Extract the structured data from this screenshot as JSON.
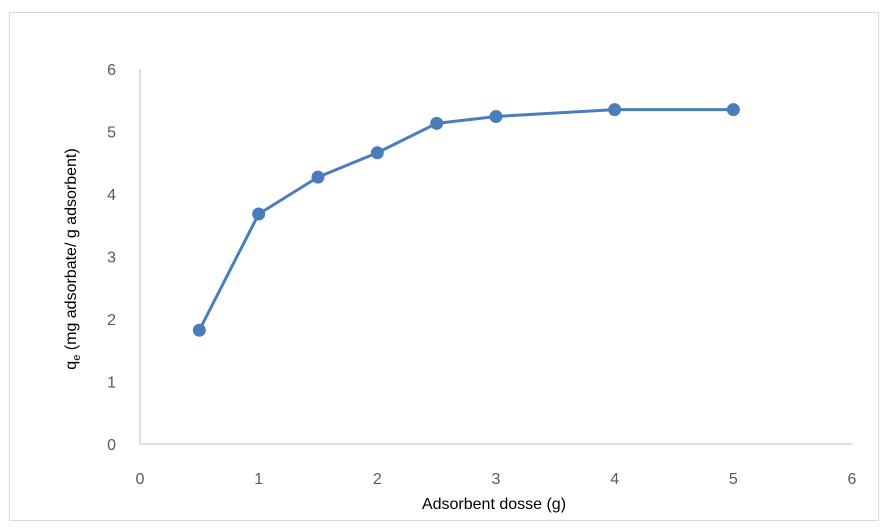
{
  "chart_data": {
    "type": "line",
    "title": "",
    "xlabel": "Adsorbent dosse (g)",
    "ylabel": {
      "main": "q",
      "subscript": "e",
      "rest": " (mg adsorbate/ g adsorbent)"
    },
    "xlim": [
      0,
      6
    ],
    "ylim": [
      0,
      6
    ],
    "x_ticks": [
      "0",
      "1",
      "2",
      "3",
      "4",
      "5",
      "6"
    ],
    "y_ticks": [
      "0",
      "1",
      "2",
      "3",
      "4",
      "5",
      "6"
    ],
    "grid": false,
    "legend": "none",
    "series": [
      {
        "x": [
          0.5,
          1,
          1.5,
          2,
          2.5,
          3,
          4,
          5
        ],
        "y": [
          1.82,
          3.68,
          4.27,
          4.66,
          5.13,
          5.24,
          5.35,
          5.35
        ],
        "color": "#4a7ebb",
        "marker": "circle"
      }
    ]
  }
}
